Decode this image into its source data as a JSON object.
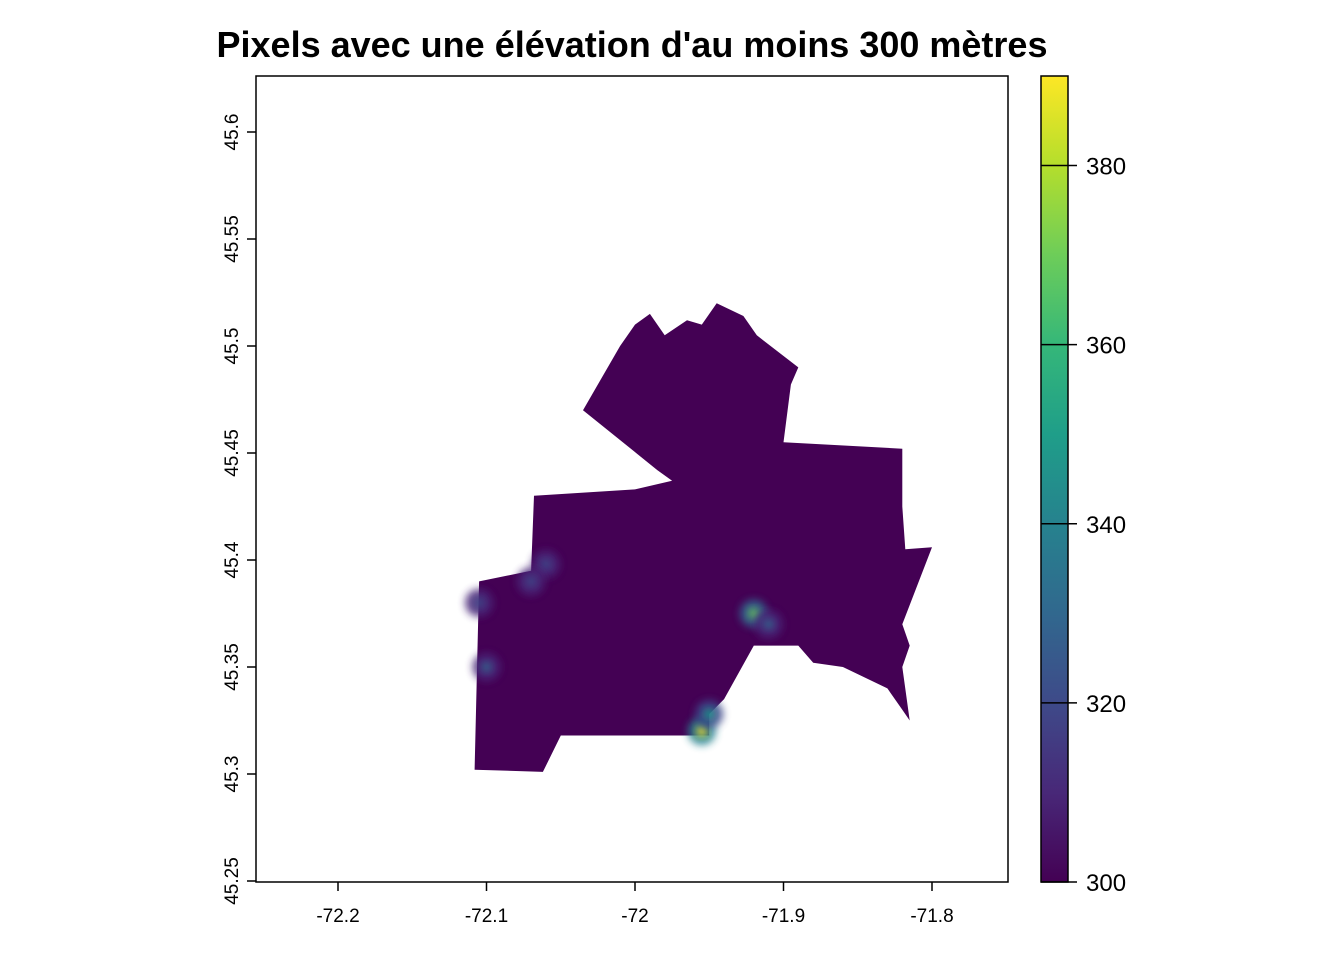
{
  "title": "Pixels avec une élévation d'au moins 300 mètres",
  "x_axis": {
    "ticks": [
      {
        "value": -72.2,
        "label": "-72.2"
      },
      {
        "value": -72.1,
        "label": "-72.1"
      },
      {
        "value": -72.0,
        "label": "-72"
      },
      {
        "value": -71.9,
        "label": "-71.9"
      },
      {
        "value": -71.8,
        "label": "-71.8"
      }
    ]
  },
  "y_axis": {
    "ticks": [
      {
        "value": 45.25,
        "label": "45.25"
      },
      {
        "value": 45.3,
        "label": "45.3"
      },
      {
        "value": 45.35,
        "label": "45.35"
      },
      {
        "value": 45.4,
        "label": "45.4"
      },
      {
        "value": 45.45,
        "label": "45.45"
      },
      {
        "value": 45.5,
        "label": "45.5"
      },
      {
        "value": 45.55,
        "label": "45.55"
      },
      {
        "value": 45.6,
        "label": "45.6"
      }
    ]
  },
  "legend": {
    "min": 300,
    "max": 390,
    "ticks": [
      {
        "value": 300,
        "label": "300"
      },
      {
        "value": 320,
        "label": "320"
      },
      {
        "value": 340,
        "label": "340"
      },
      {
        "value": 360,
        "label": "360"
      },
      {
        "value": 380,
        "label": "380"
      }
    ],
    "colors": [
      "#440154",
      "#482878",
      "#3E4A89",
      "#31688E",
      "#26828E",
      "#1F9E89",
      "#35B779",
      "#6DCD59",
      "#B4DE2C",
      "#FDE725"
    ]
  },
  "map": {
    "base_color": "#440154",
    "region_lon_lat": [
      [
        -71.927,
        45.514
      ],
      [
        -71.918,
        45.505
      ],
      [
        -71.89,
        45.49
      ],
      [
        -71.895,
        45.482
      ],
      [
        -71.9,
        45.455
      ],
      [
        -71.82,
        45.452
      ],
      [
        -71.82,
        45.425
      ],
      [
        -71.818,
        45.405
      ],
      [
        -71.8,
        45.406
      ],
      [
        -71.82,
        45.37
      ],
      [
        -71.815,
        45.36
      ],
      [
        -71.82,
        45.35
      ],
      [
        -71.815,
        45.325
      ],
      [
        -71.82,
        45.33
      ],
      [
        -71.83,
        45.34
      ],
      [
        -71.86,
        45.35
      ],
      [
        -71.88,
        45.352
      ],
      [
        -71.89,
        45.36
      ],
      [
        -71.92,
        45.36
      ],
      [
        -71.94,
        45.335
      ],
      [
        -71.95,
        45.328
      ],
      [
        -71.95,
        45.318
      ],
      [
        -72.05,
        45.318
      ],
      [
        -72.062,
        45.301
      ],
      [
        -72.108,
        45.302
      ],
      [
        -72.105,
        45.39
      ],
      [
        -72.07,
        45.395
      ],
      [
        -72.068,
        45.43
      ],
      [
        -72.0,
        45.433
      ],
      [
        -71.975,
        45.437
      ],
      [
        -71.985,
        45.442
      ],
      [
        -72.035,
        45.47
      ],
      [
        -72.01,
        45.5
      ],
      [
        -72.0,
        45.51
      ],
      [
        -71.99,
        45.515
      ],
      [
        -71.98,
        45.505
      ],
      [
        -71.965,
        45.512
      ],
      [
        -71.955,
        45.51
      ],
      [
        -71.945,
        45.52
      ]
    ],
    "highlights": [
      {
        "lon": -71.955,
        "lat": 45.32,
        "value": 388
      },
      {
        "lon": -71.95,
        "lat": 45.328,
        "value": 345
      },
      {
        "lon": -71.92,
        "lat": 45.375,
        "value": 372
      },
      {
        "lon": -71.91,
        "lat": 45.37,
        "value": 330
      },
      {
        "lon": -72.1,
        "lat": 45.35,
        "value": 330
      },
      {
        "lon": -72.06,
        "lat": 45.398,
        "value": 318
      },
      {
        "lon": -72.07,
        "lat": 45.39,
        "value": 315
      },
      {
        "lon": -72.105,
        "lat": 45.38,
        "value": 315
      }
    ]
  }
}
